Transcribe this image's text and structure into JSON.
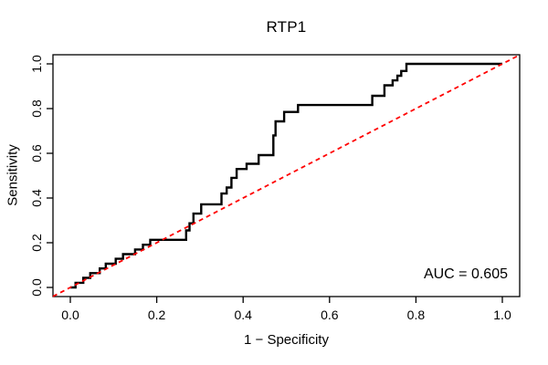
{
  "chart_data": {
    "type": "line",
    "title": "RTP1",
    "xlabel": "1 − Specificity",
    "ylabel": "Sensitivity",
    "xlim": [
      0,
      1
    ],
    "ylim": [
      0,
      1
    ],
    "grid": false,
    "legend_position": "none",
    "background_color": "#ffffff",
    "box_color": "#000000",
    "x_ticks": {
      "values": [
        0,
        0.2,
        0.4,
        0.6,
        0.8,
        1.0
      ],
      "labels": [
        "0.0",
        "0.2",
        "0.4",
        "0.6",
        "0.8",
        "1.0"
      ]
    },
    "y_ticks": {
      "values": [
        0,
        0.2,
        0.4,
        0.6,
        0.8,
        1.0
      ],
      "labels": [
        "0.0",
        "0.2",
        "0.4",
        "0.6",
        "0.8",
        "1.0"
      ]
    },
    "annotation": {
      "text": "AUC = 0.605",
      "auc_value": 0.605,
      "position": "bottom-right"
    },
    "series": [
      {
        "name": "roc-curve",
        "style": "step-solid",
        "color": "#000000",
        "line_width": 2.4,
        "points": [
          [
            0.0,
            0.0
          ],
          [
            0.012,
            0.0
          ],
          [
            0.012,
            0.021
          ],
          [
            0.03,
            0.021
          ],
          [
            0.03,
            0.043
          ],
          [
            0.046,
            0.043
          ],
          [
            0.046,
            0.064
          ],
          [
            0.068,
            0.064
          ],
          [
            0.068,
            0.085
          ],
          [
            0.082,
            0.085
          ],
          [
            0.082,
            0.106
          ],
          [
            0.105,
            0.106
          ],
          [
            0.105,
            0.128
          ],
          [
            0.122,
            0.128
          ],
          [
            0.122,
            0.149
          ],
          [
            0.15,
            0.149
          ],
          [
            0.15,
            0.17
          ],
          [
            0.168,
            0.17
          ],
          [
            0.168,
            0.191
          ],
          [
            0.185,
            0.191
          ],
          [
            0.185,
            0.213
          ],
          [
            0.268,
            0.213
          ],
          [
            0.268,
            0.255
          ],
          [
            0.276,
            0.255
          ],
          [
            0.276,
            0.287
          ],
          [
            0.285,
            0.287
          ],
          [
            0.285,
            0.33
          ],
          [
            0.303,
            0.33
          ],
          [
            0.303,
            0.372
          ],
          [
            0.35,
            0.372
          ],
          [
            0.35,
            0.42
          ],
          [
            0.362,
            0.42
          ],
          [
            0.362,
            0.447
          ],
          [
            0.373,
            0.447
          ],
          [
            0.373,
            0.49
          ],
          [
            0.385,
            0.49
          ],
          [
            0.385,
            0.53
          ],
          [
            0.408,
            0.53
          ],
          [
            0.408,
            0.553
          ],
          [
            0.436,
            0.553
          ],
          [
            0.436,
            0.592
          ],
          [
            0.47,
            0.592
          ],
          [
            0.47,
            0.68
          ],
          [
            0.475,
            0.68
          ],
          [
            0.475,
            0.743
          ],
          [
            0.495,
            0.743
          ],
          [
            0.495,
            0.785
          ],
          [
            0.527,
            0.785
          ],
          [
            0.527,
            0.816
          ],
          [
            0.699,
            0.816
          ],
          [
            0.699,
            0.857
          ],
          [
            0.727,
            0.857
          ],
          [
            0.727,
            0.904
          ],
          [
            0.746,
            0.904
          ],
          [
            0.746,
            0.926
          ],
          [
            0.757,
            0.926
          ],
          [
            0.757,
            0.947
          ],
          [
            0.766,
            0.947
          ],
          [
            0.766,
            0.968
          ],
          [
            0.778,
            0.968
          ],
          [
            0.778,
            1.0
          ],
          [
            1.0,
            1.0
          ]
        ]
      },
      {
        "name": "chance-diagonal",
        "style": "dashed-line",
        "color": "#ff0000",
        "line_width": 1.8,
        "points": [
          [
            0.0,
            0.0
          ],
          [
            1.0,
            1.0
          ]
        ]
      }
    ]
  }
}
